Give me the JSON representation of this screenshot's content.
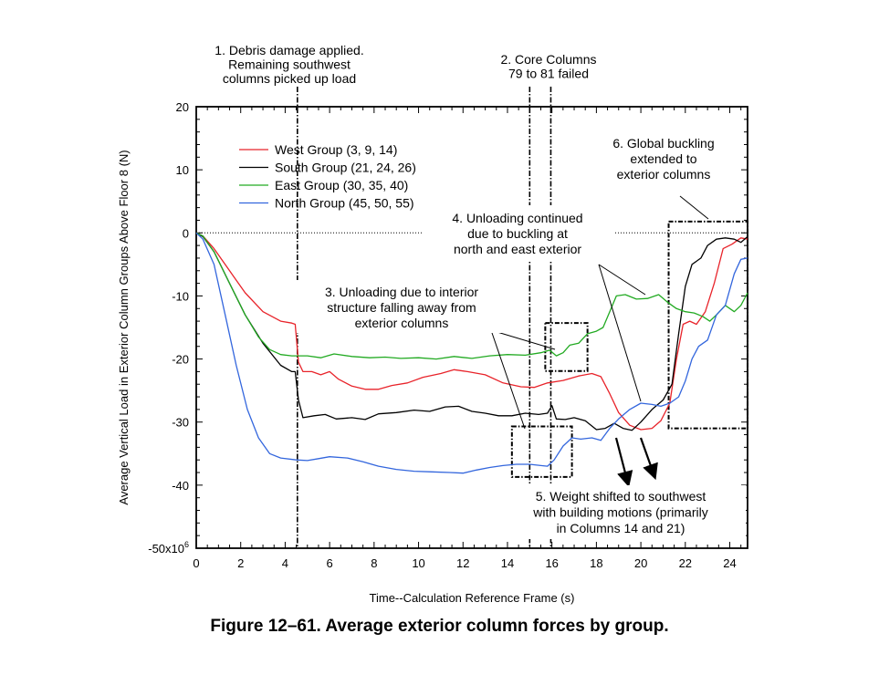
{
  "chart_data": {
    "type": "line",
    "xlabel": "Time--Calculation Reference Frame (s)",
    "ylabel": "Average Vertical Load in Exterior Column Groups Above Floor 8 (N)",
    "xlim": [
      0,
      24.8
    ],
    "ylim": [
      -50000000,
      20000000
    ],
    "x_ticks": [
      0,
      2,
      4,
      6,
      8,
      10,
      12,
      14,
      16,
      18,
      20,
      22,
      24
    ],
    "x_tick_labels": [
      "0",
      "2",
      "4",
      "6",
      "8",
      "10",
      "12",
      "14",
      "16",
      "18",
      "20",
      "22",
      "24"
    ],
    "y_ticks": [
      -50000000,
      -40000000,
      -30000000,
      -20000000,
      -10000000,
      0,
      10000000,
      20000000
    ],
    "y_tick_labels": [
      "-50x10",
      "-40",
      "-30",
      "-20",
      "-10",
      "0",
      "10",
      "20"
    ],
    "y_exponent": "6",
    "zero_line": true,
    "series": [
      {
        "name": "West Group (3, 9, 14)",
        "color": "#e8232a",
        "points": [
          [
            0,
            0
          ],
          [
            0.3,
            -0.5
          ],
          [
            0.8,
            -2.5
          ],
          [
            1.5,
            -6
          ],
          [
            2.2,
            -9.5
          ],
          [
            3,
            -12.5
          ],
          [
            3.8,
            -14
          ],
          [
            4.3,
            -14.3
          ],
          [
            4.45,
            -14.5
          ],
          [
            4.6,
            -20.5
          ],
          [
            4.8,
            -22
          ],
          [
            5.2,
            -22
          ],
          [
            5.6,
            -22.5
          ],
          [
            6,
            -22
          ],
          [
            6.4,
            -23.2
          ],
          [
            7,
            -24.3
          ],
          [
            7.6,
            -24.8
          ],
          [
            8.2,
            -24.8
          ],
          [
            8.8,
            -24.2
          ],
          [
            9.5,
            -23.8
          ],
          [
            10.2,
            -22.9
          ],
          [
            11,
            -22.3
          ],
          [
            11.6,
            -21.7
          ],
          [
            12.2,
            -22
          ],
          [
            13,
            -22.5
          ],
          [
            13.8,
            -23.8
          ],
          [
            14.6,
            -24.4
          ],
          [
            15.2,
            -24.5
          ],
          [
            15.8,
            -23.8
          ],
          [
            16.5,
            -23.4
          ],
          [
            17.2,
            -22.7
          ],
          [
            17.8,
            -22.3
          ],
          [
            18.2,
            -22.8
          ],
          [
            18.6,
            -25.5
          ],
          [
            19,
            -28.5
          ],
          [
            19.5,
            -30.5
          ],
          [
            20,
            -31.2
          ],
          [
            20.5,
            -31
          ],
          [
            20.9,
            -29.8
          ],
          [
            21.3,
            -27
          ],
          [
            21.6,
            -20
          ],
          [
            21.9,
            -14.5
          ],
          [
            22.2,
            -14
          ],
          [
            22.5,
            -14.5
          ],
          [
            22.9,
            -12.5
          ],
          [
            23.3,
            -8
          ],
          [
            23.7,
            -2.5
          ],
          [
            24.1,
            -1.8
          ],
          [
            24.5,
            -0.8
          ],
          [
            24.8,
            -1
          ]
        ]
      },
      {
        "name": "South Group (21, 24, 26)",
        "color": "#000000",
        "points": [
          [
            0,
            0
          ],
          [
            0.3,
            -0.6
          ],
          [
            0.8,
            -3
          ],
          [
            1.5,
            -8
          ],
          [
            2.2,
            -13
          ],
          [
            3,
            -17.5
          ],
          [
            3.8,
            -21
          ],
          [
            4.3,
            -22
          ],
          [
            4.45,
            -22
          ],
          [
            4.6,
            -26.5
          ],
          [
            4.8,
            -29.3
          ],
          [
            5.3,
            -29
          ],
          [
            5.8,
            -28.8
          ],
          [
            6.3,
            -29.5
          ],
          [
            7,
            -29.3
          ],
          [
            7.6,
            -29.6
          ],
          [
            8.2,
            -28.7
          ],
          [
            9,
            -28.5
          ],
          [
            9.8,
            -28.1
          ],
          [
            10.5,
            -28.3
          ],
          [
            11.2,
            -27.6
          ],
          [
            11.8,
            -27.5
          ],
          [
            12.4,
            -28.3
          ],
          [
            13,
            -28.6
          ],
          [
            13.6,
            -29
          ],
          [
            14.2,
            -29
          ],
          [
            14.8,
            -28.6
          ],
          [
            15.4,
            -28.8
          ],
          [
            15.8,
            -28.6
          ],
          [
            16,
            -27.4
          ],
          [
            16.2,
            -29.5
          ],
          [
            16.6,
            -29.6
          ],
          [
            17,
            -29.3
          ],
          [
            17.5,
            -29.8
          ],
          [
            18,
            -31.2
          ],
          [
            18.4,
            -31
          ],
          [
            18.8,
            -30.2
          ],
          [
            19.2,
            -31
          ],
          [
            19.6,
            -31.3
          ],
          [
            20,
            -30
          ],
          [
            20.5,
            -28
          ],
          [
            21,
            -26.5
          ],
          [
            21.4,
            -24
          ],
          [
            21.7,
            -16
          ],
          [
            22,
            -8.5
          ],
          [
            22.3,
            -5
          ],
          [
            22.7,
            -4
          ],
          [
            23,
            -2
          ],
          [
            23.4,
            -1
          ],
          [
            23.8,
            -0.8
          ],
          [
            24.2,
            -1
          ],
          [
            24.5,
            -1.5
          ],
          [
            24.8,
            -0.6
          ]
        ]
      },
      {
        "name": "East Group (30, 35, 40)",
        "color": "#22aa22",
        "points": [
          [
            0,
            0
          ],
          [
            0.3,
            -0.5
          ],
          [
            0.8,
            -3
          ],
          [
            1.5,
            -8
          ],
          [
            2.2,
            -13
          ],
          [
            2.8,
            -16.5
          ],
          [
            3.3,
            -18.5
          ],
          [
            3.8,
            -19.3
          ],
          [
            4.3,
            -19.5
          ],
          [
            5,
            -19.5
          ],
          [
            5.6,
            -19.8
          ],
          [
            6.2,
            -19.2
          ],
          [
            7,
            -19.6
          ],
          [
            7.8,
            -19.8
          ],
          [
            8.5,
            -19.7
          ],
          [
            9.2,
            -19.9
          ],
          [
            10,
            -19.8
          ],
          [
            10.8,
            -20
          ],
          [
            11.6,
            -19.6
          ],
          [
            12.4,
            -19.9
          ],
          [
            13.2,
            -19.5
          ],
          [
            14,
            -19.3
          ],
          [
            14.8,
            -19.4
          ],
          [
            15.5,
            -19
          ],
          [
            15.9,
            -18.6
          ],
          [
            16.2,
            -19.5
          ],
          [
            16.5,
            -19
          ],
          [
            16.8,
            -17.8
          ],
          [
            17.2,
            -17.5
          ],
          [
            17.6,
            -16
          ],
          [
            18,
            -15.6
          ],
          [
            18.3,
            -15
          ],
          [
            18.6,
            -12.5
          ],
          [
            18.9,
            -10
          ],
          [
            19.3,
            -9.8
          ],
          [
            19.8,
            -10.5
          ],
          [
            20.3,
            -10.4
          ],
          [
            20.8,
            -9.8
          ],
          [
            21.2,
            -11
          ],
          [
            21.6,
            -12
          ],
          [
            22,
            -12.5
          ],
          [
            22.4,
            -12.7
          ],
          [
            22.8,
            -13.3
          ],
          [
            23.1,
            -14
          ],
          [
            23.4,
            -13
          ],
          [
            23.8,
            -11.5
          ],
          [
            24.2,
            -12.5
          ],
          [
            24.5,
            -11.5
          ],
          [
            24.8,
            -9.5
          ]
        ]
      },
      {
        "name": "North Group (45, 50, 55)",
        "color": "#3366dd",
        "points": [
          [
            0,
            0
          ],
          [
            0.3,
            -1
          ],
          [
            0.8,
            -5
          ],
          [
            1.3,
            -13
          ],
          [
            1.8,
            -21
          ],
          [
            2.3,
            -28
          ],
          [
            2.8,
            -32.5
          ],
          [
            3.3,
            -35
          ],
          [
            3.8,
            -35.7
          ],
          [
            4.5,
            -36
          ],
          [
            5,
            -36.1
          ],
          [
            5.5,
            -35.8
          ],
          [
            6,
            -35.5
          ],
          [
            6.8,
            -35.7
          ],
          [
            7.5,
            -36.3
          ],
          [
            8.2,
            -37
          ],
          [
            9,
            -37.5
          ],
          [
            9.8,
            -37.8
          ],
          [
            10.6,
            -37.9
          ],
          [
            11.4,
            -38
          ],
          [
            12,
            -38.1
          ],
          [
            12.6,
            -37.6
          ],
          [
            13.2,
            -37.2
          ],
          [
            13.8,
            -36.9
          ],
          [
            14.4,
            -36.7
          ],
          [
            15,
            -36.7
          ],
          [
            15.5,
            -36.9
          ],
          [
            15.8,
            -37
          ],
          [
            16.1,
            -36
          ],
          [
            16.5,
            -33.8
          ],
          [
            16.9,
            -32.5
          ],
          [
            17.3,
            -32.7
          ],
          [
            17.8,
            -32.5
          ],
          [
            18.2,
            -32.9
          ],
          [
            18.6,
            -31
          ],
          [
            19,
            -29.5
          ],
          [
            19.5,
            -28
          ],
          [
            20,
            -27
          ],
          [
            20.5,
            -27.2
          ],
          [
            20.9,
            -27.5
          ],
          [
            21.3,
            -27
          ],
          [
            21.7,
            -26
          ],
          [
            22,
            -23.5
          ],
          [
            22.3,
            -20
          ],
          [
            22.6,
            -18
          ],
          [
            23,
            -17
          ],
          [
            23.4,
            -13
          ],
          [
            23.8,
            -11.5
          ],
          [
            24.2,
            -6.5
          ],
          [
            24.5,
            -4.2
          ],
          [
            24.8,
            -4
          ]
        ]
      }
    ],
    "annotations": [
      {
        "id": "a1",
        "text": [
          "1. Debris damage applied.",
          "Remaining southwest",
          "columns picked up load"
        ]
      },
      {
        "id": "a2",
        "text": [
          "2. Core Columns",
          "79 to 81 failed"
        ]
      },
      {
        "id": "a3",
        "text": [
          "3. Unloading due to interior",
          "structure falling away from",
          "exterior columns"
        ]
      },
      {
        "id": "a4",
        "text": [
          "4. Unloading continued",
          "due to buckling at",
          "north and east exterior"
        ]
      },
      {
        "id": "a5",
        "text": [
          "5. Weight shifted to southwest",
          "with building motions (primarily",
          "in Columns 14 and 21)"
        ]
      },
      {
        "id": "a6",
        "text": [
          "6. Global buckling",
          "extended to",
          "exterior columns"
        ]
      }
    ],
    "vertical_markers": [
      4.55,
      15.0,
      15.95
    ],
    "legend_position": "top-left"
  },
  "caption": "Figure 12–61.  Average exterior column forces by group."
}
